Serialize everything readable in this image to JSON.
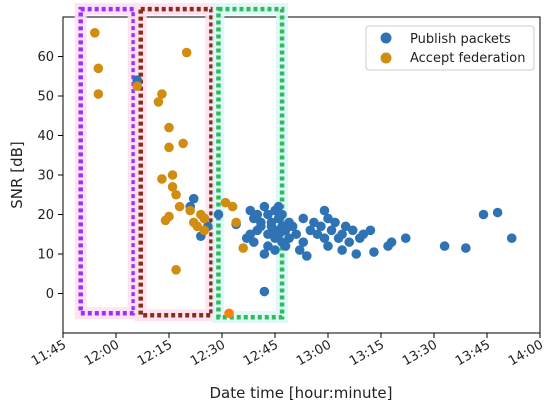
{
  "chart_data": {
    "type": "scatter",
    "xlabel": "Date time [hour:minute]",
    "ylabel": "SNR [dB]",
    "xlim_minutes_after_11_45": [
      0,
      135
    ],
    "ylim": [
      -10,
      70
    ],
    "grid": false,
    "legend_placement": "top-right",
    "x_ticks": [
      "11:45",
      "12:00",
      "12:15",
      "12:30",
      "12:45",
      "13:00",
      "13:15",
      "13:30",
      "13:45",
      "14:00"
    ],
    "y_ticks": [
      "0",
      "10",
      "20",
      "30",
      "40",
      "50",
      "60"
    ],
    "colors": {
      "publish": "#2f73b5",
      "accept": "#d08d12",
      "accept_outlier": "#ff7f0e",
      "box_purple": "#9b30ff",
      "box_brown": "#8b2b1a",
      "box_green": "#2dbd57",
      "glow_pink": "#ffe0ef",
      "glow_cyan": "#dcf7f7"
    },
    "highlight_boxes": [
      {
        "color": "box_purple",
        "x_range": [
          "11:50",
          "12:05"
        ],
        "y_range": [
          -5,
          72
        ]
      },
      {
        "color": "box_brown",
        "x_range": [
          "12:07",
          "12:27"
        ],
        "y_range": [
          -5.5,
          72
        ]
      },
      {
        "color": "box_green",
        "x_range": [
          "12:29",
          "12:47"
        ],
        "y_range": [
          -6,
          72
        ]
      }
    ],
    "series": [
      {
        "name": "Publish packets",
        "color": "publish",
        "points": [
          [
            "12:06",
            54
          ],
          [
            "12:21",
            22
          ],
          [
            "12:22",
            24
          ],
          [
            "12:24",
            14.5
          ],
          [
            "12:25",
            19
          ],
          [
            "12:26",
            17
          ],
          [
            "12:29",
            20
          ],
          [
            "12:34",
            17.5
          ],
          [
            "12:37",
            14
          ],
          [
            "12:38",
            21
          ],
          [
            "12:38",
            15
          ],
          [
            "12:39",
            13
          ],
          [
            "12:39",
            19
          ],
          [
            "12:40",
            16
          ],
          [
            "12:40",
            20
          ],
          [
            "12:41",
            18
          ],
          [
            "12:41",
            17
          ],
          [
            "12:42",
            10
          ],
          [
            "12:42",
            22
          ],
          [
            "12:42",
            0.5
          ],
          [
            "12:43",
            15
          ],
          [
            "12:43",
            12
          ],
          [
            "12:43",
            20
          ],
          [
            "12:44",
            17
          ],
          [
            "12:44",
            18
          ],
          [
            "12:45",
            14
          ],
          [
            "12:45",
            21
          ],
          [
            "12:45",
            16
          ],
          [
            "12:45",
            11
          ],
          [
            "12:46",
            19
          ],
          [
            "12:46",
            15
          ],
          [
            "12:46",
            22
          ],
          [
            "12:47",
            17
          ],
          [
            "12:47",
            13
          ],
          [
            "12:47",
            20
          ],
          [
            "12:48",
            16
          ],
          [
            "12:48",
            12
          ],
          [
            "12:49",
            18
          ],
          [
            "12:49",
            14
          ],
          [
            "12:50",
            17
          ],
          [
            "12:51",
            15
          ],
          [
            "12:52",
            11
          ],
          [
            "12:53",
            19
          ],
          [
            "12:53",
            13
          ],
          [
            "12:54",
            9.5
          ],
          [
            "12:55",
            16
          ],
          [
            "12:56",
            18
          ],
          [
            "12:57",
            15
          ],
          [
            "12:58",
            17
          ],
          [
            "12:59",
            21
          ],
          [
            "12:59",
            14
          ],
          [
            "13:00",
            19
          ],
          [
            "13:00",
            12
          ],
          [
            "13:01",
            16
          ],
          [
            "13:02",
            18
          ],
          [
            "13:03",
            14
          ],
          [
            "13:04",
            15
          ],
          [
            "13:04",
            11
          ],
          [
            "13:05",
            17
          ],
          [
            "13:06",
            13
          ],
          [
            "13:07",
            16
          ],
          [
            "13:08",
            10
          ],
          [
            "13:09",
            14
          ],
          [
            "13:10",
            15
          ],
          [
            "13:12",
            16
          ],
          [
            "13:13",
            10.5
          ],
          [
            "13:17",
            12
          ],
          [
            "13:18",
            13
          ],
          [
            "13:22",
            14
          ],
          [
            "13:33",
            12
          ],
          [
            "13:39",
            11.5
          ],
          [
            "13:44",
            20
          ],
          [
            "13:48",
            20.5
          ],
          [
            "13:52",
            14
          ]
        ]
      },
      {
        "name": "Accept federation",
        "color": "accept",
        "points": [
          [
            "11:54",
            66
          ],
          [
            "11:55",
            57
          ],
          [
            "11:55",
            50.5
          ],
          [
            "12:06",
            52.5
          ],
          [
            "12:12",
            48.5
          ],
          [
            "12:13",
            50.5
          ],
          [
            "12:13",
            29
          ],
          [
            "12:14",
            18.5
          ],
          [
            "12:15",
            42
          ],
          [
            "12:15",
            37
          ],
          [
            "12:15",
            19.5
          ],
          [
            "12:16",
            27
          ],
          [
            "12:16",
            30
          ],
          [
            "12:17",
            6
          ],
          [
            "12:17",
            25
          ],
          [
            "12:18",
            22
          ],
          [
            "12:19",
            38
          ],
          [
            "12:20",
            61
          ],
          [
            "12:21",
            21
          ],
          [
            "12:22",
            18
          ],
          [
            "12:23",
            17
          ],
          [
            "12:24",
            20
          ],
          [
            "12:25",
            19
          ],
          [
            "12:25",
            16
          ],
          [
            "12:31",
            23
          ],
          [
            "12:33",
            22
          ],
          [
            "12:34",
            18
          ],
          [
            "12:36",
            11.5
          ],
          [
            "12:32",
            -5
          ]
        ]
      }
    ]
  }
}
